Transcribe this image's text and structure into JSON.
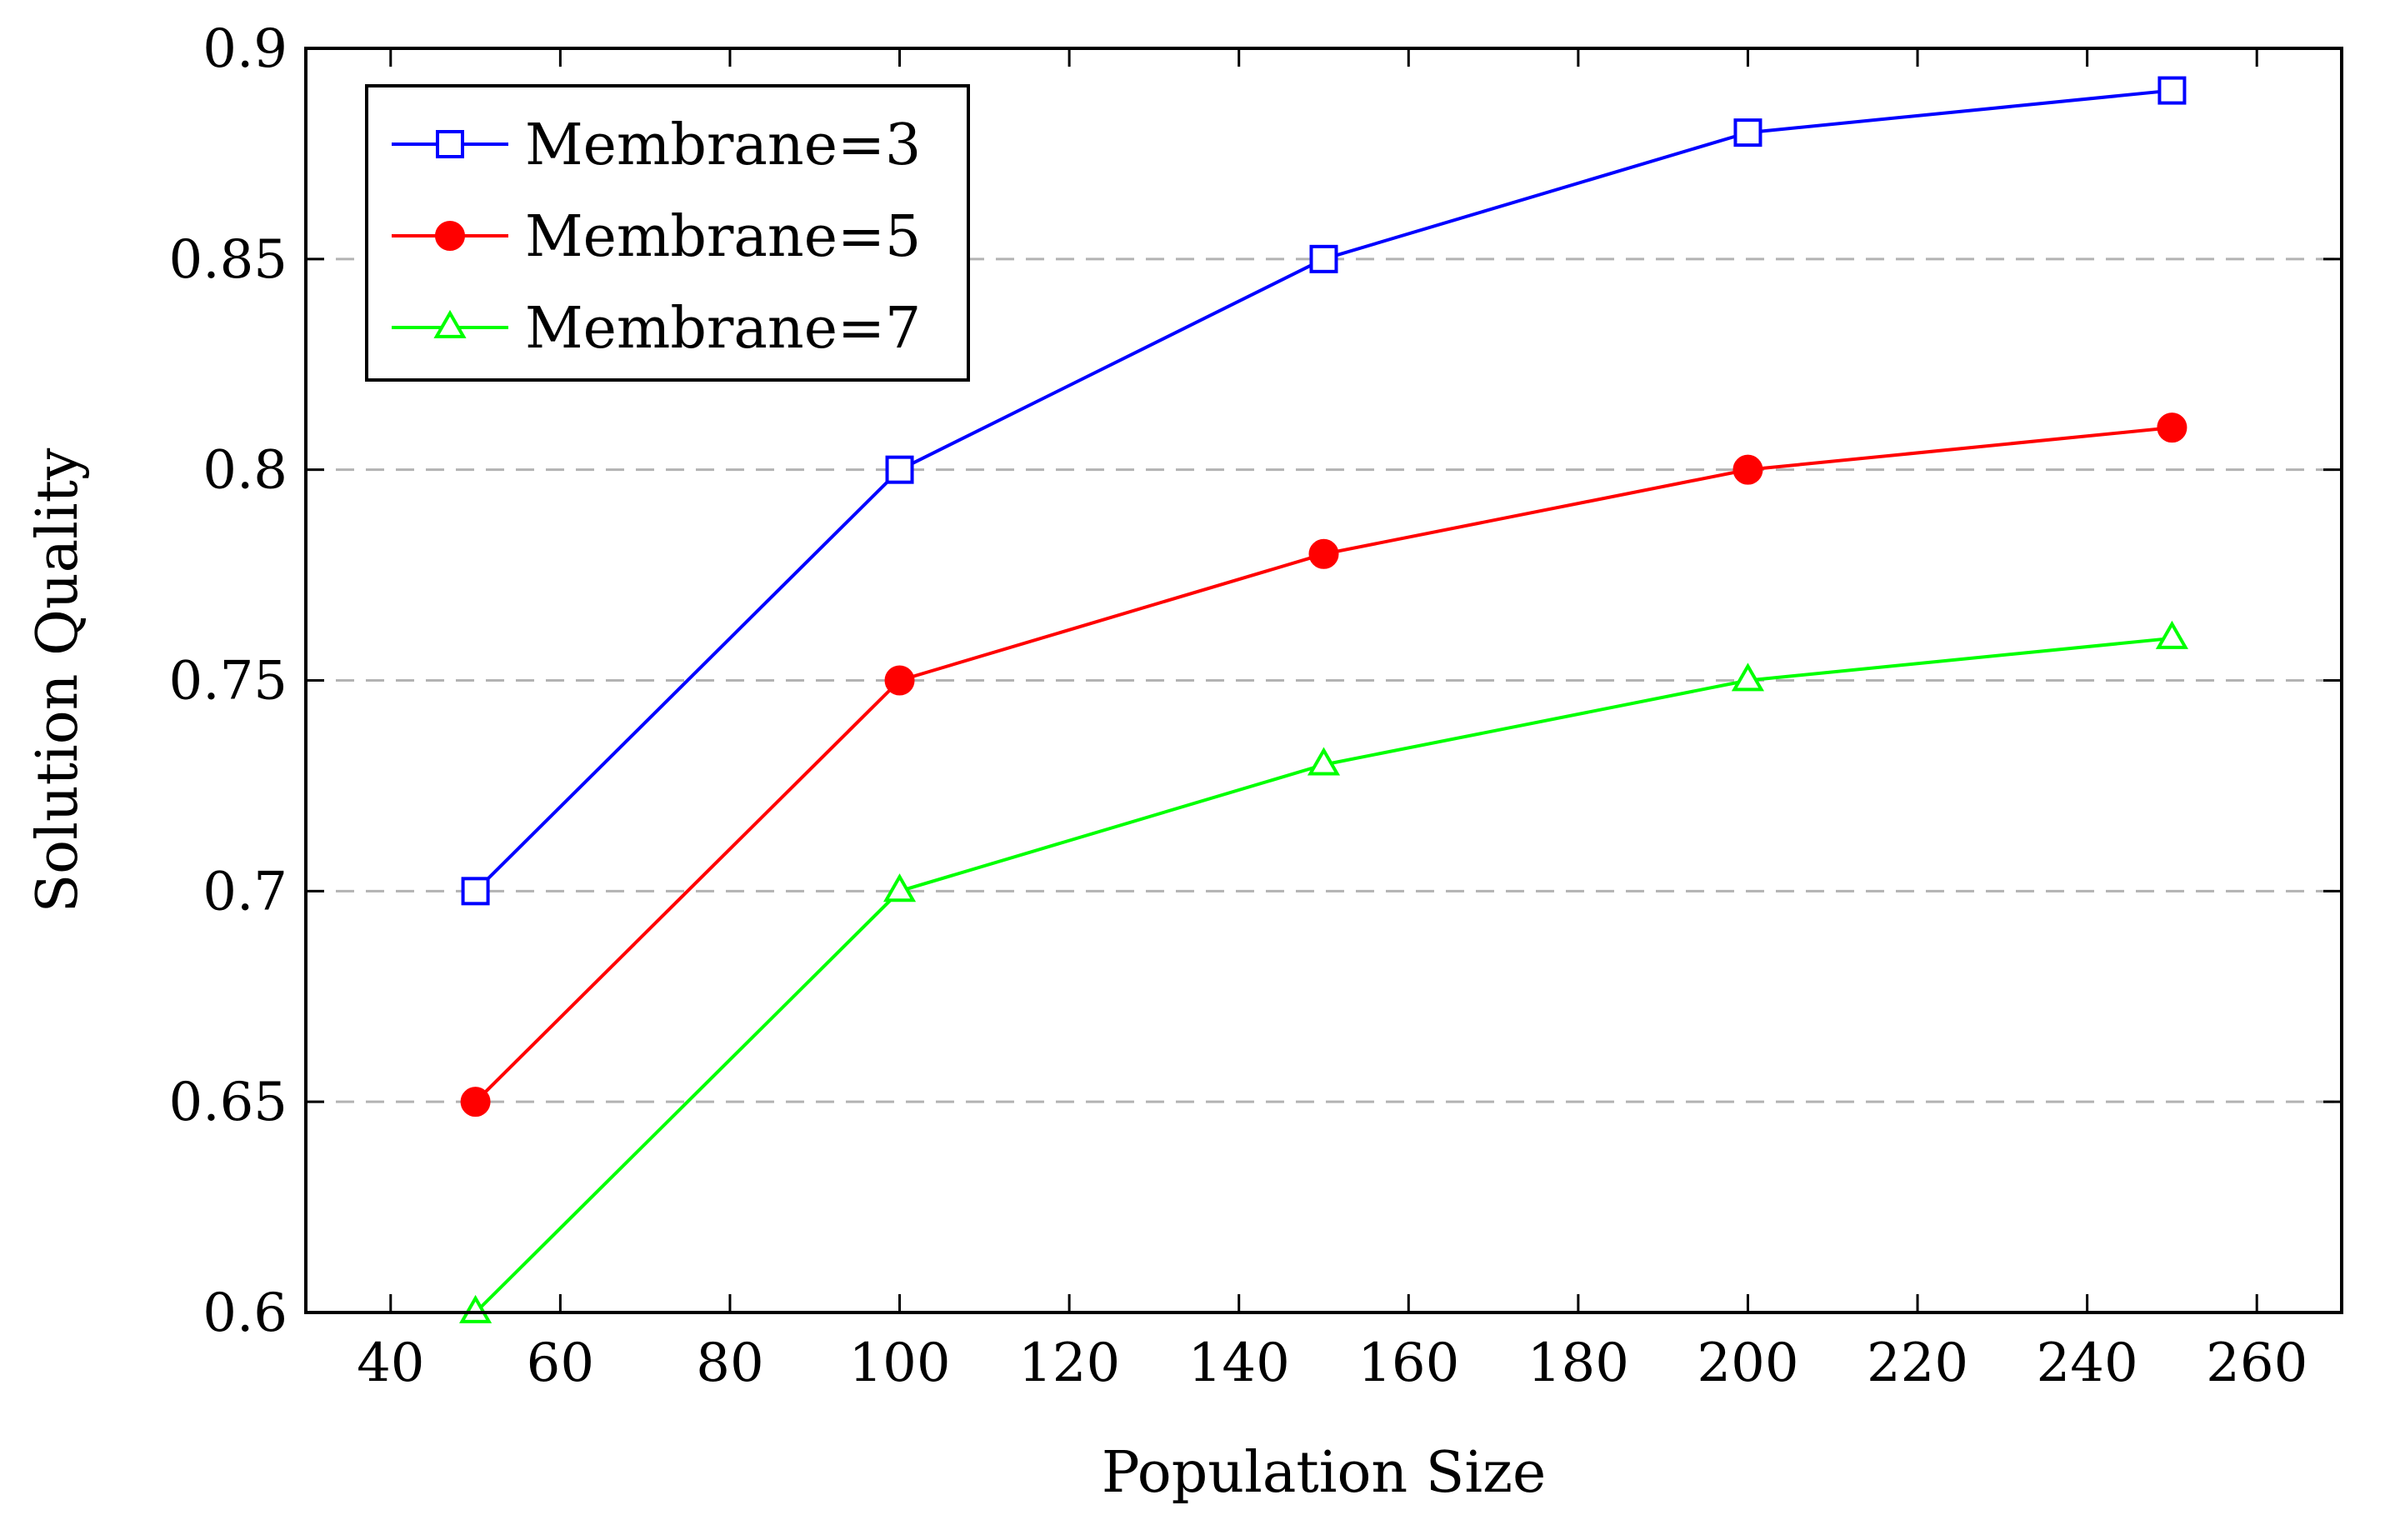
{
  "chart_data": {
    "type": "line",
    "xlabel": "Population Size",
    "ylabel": "Solution Quality",
    "xlim": [
      30,
      270
    ],
    "ylim": [
      0.6,
      0.9
    ],
    "xticks": [
      40,
      60,
      80,
      100,
      120,
      140,
      160,
      180,
      200,
      220,
      240,
      260
    ],
    "xtick_labels": [
      "40",
      "60",
      "80",
      "100",
      "120",
      "140",
      "160",
      "180",
      "200",
      "220",
      "240",
      "260"
    ],
    "yticks": [
      0.6,
      0.65,
      0.7,
      0.75,
      0.8,
      0.85,
      0.9
    ],
    "ytick_labels": [
      "0.6",
      "0.65",
      "0.7",
      "0.75",
      "0.8",
      "0.85",
      "0.9"
    ],
    "grid": "horizontal-dashed",
    "legend_position": "top-left",
    "x": [
      50,
      100,
      150,
      200,
      250
    ],
    "series": [
      {
        "name": "Membrane=3",
        "values": [
          0.7,
          0.8,
          0.85,
          0.88,
          0.89
        ],
        "color": "#0000ff",
        "marker": "open-square"
      },
      {
        "name": "Membrane=5",
        "values": [
          0.65,
          0.75,
          0.78,
          0.8,
          0.81
        ],
        "color": "#ff0000",
        "marker": "filled-circle"
      },
      {
        "name": "Membrane=7",
        "values": [
          0.6,
          0.7,
          0.73,
          0.75,
          0.76
        ],
        "color": "#00ff00",
        "marker": "open-triangle"
      }
    ]
  }
}
